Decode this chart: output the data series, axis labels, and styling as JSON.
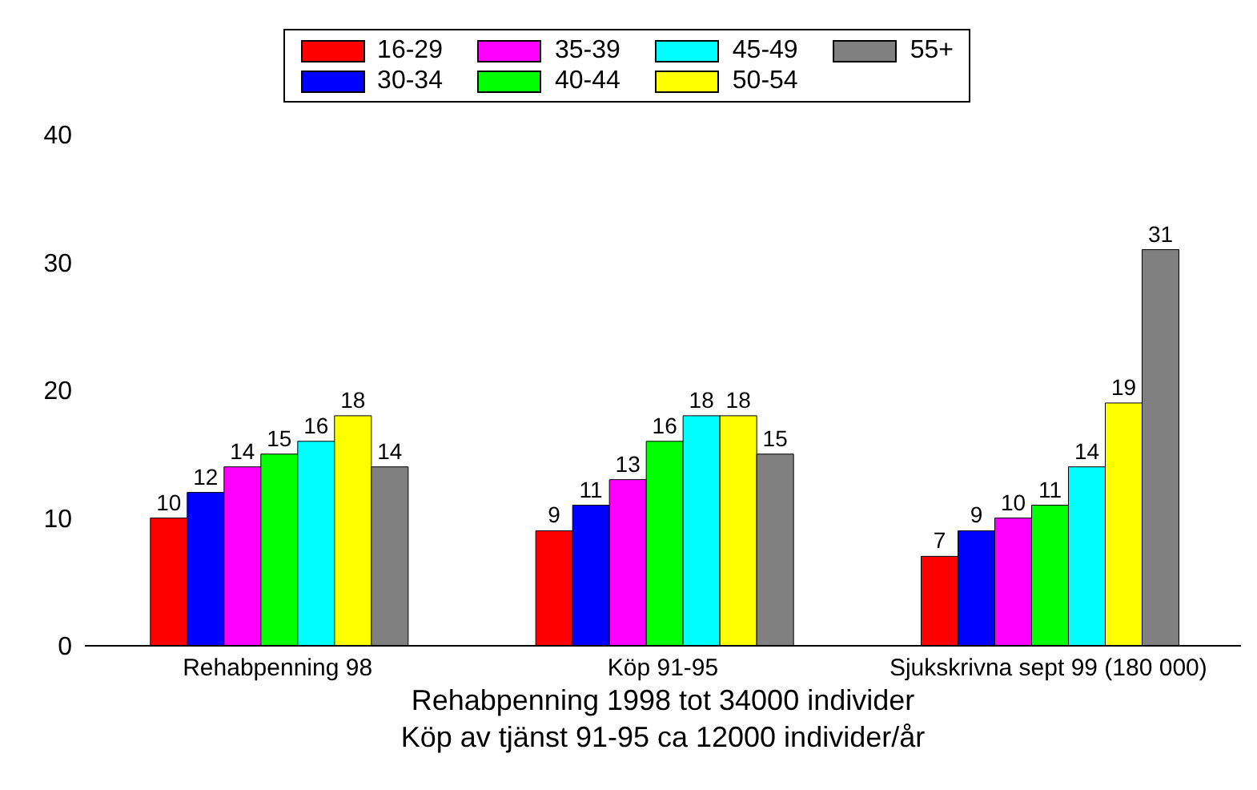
{
  "chart_data": {
    "type": "bar",
    "xlabel": "Rehabpenning 1998 tot 34000 individer\nKöp av tjänst 91-95 ca 12000 individer/år",
    "categories": [
      "Rehabpenning 98",
      "Köp 91-95",
      "Sjukskrivna sept 99 (180 000)"
    ],
    "series": [
      {
        "name": "16-29",
        "color": "#ff0000",
        "values": [
          10,
          9,
          7
        ]
      },
      {
        "name": "30-34",
        "color": "#0000ff",
        "values": [
          12,
          11,
          9
        ]
      },
      {
        "name": "35-39",
        "color": "#ff00ff",
        "values": [
          14,
          13,
          10
        ]
      },
      {
        "name": "40-44",
        "color": "#00ff00",
        "values": [
          15,
          16,
          11
        ]
      },
      {
        "name": "45-49",
        "color": "#00ffff",
        "values": [
          16,
          18,
          14
        ]
      },
      {
        "name": "50-54",
        "color": "#ffff00",
        "values": [
          18,
          18,
          19
        ]
      },
      {
        "name": "55+",
        "color": "#808080",
        "values": [
          14,
          15,
          31
        ]
      }
    ],
    "ylim": [
      0,
      40
    ],
    "yticks": [
      0,
      10,
      20,
      30,
      40
    ],
    "data_labels": true,
    "legend": "top",
    "grid": false
  }
}
